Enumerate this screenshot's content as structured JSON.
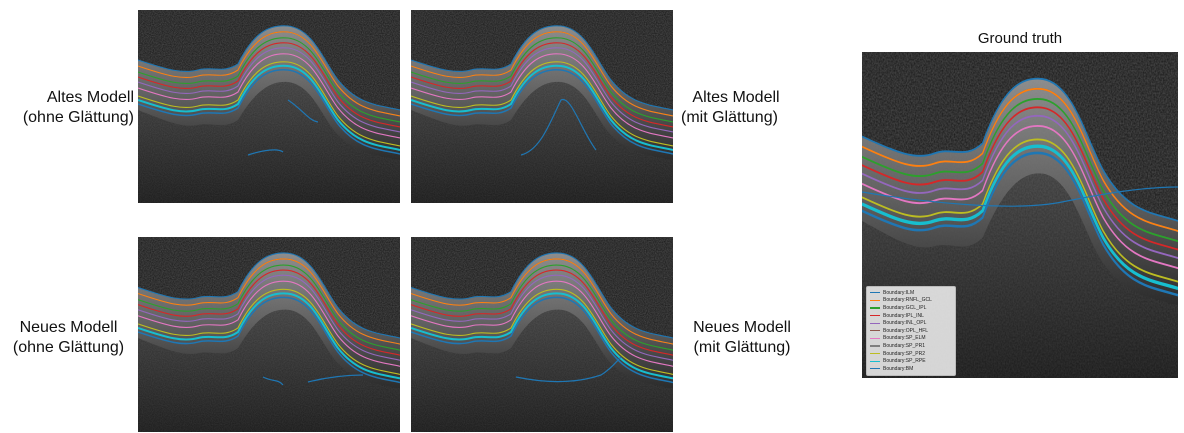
{
  "panels": [
    {
      "line1": "Altes Modell",
      "line2": "(ohne Glättung)"
    },
    {
      "line1": "Altes Modell",
      "line2": "(mit Glättung)"
    },
    {
      "line1": "Neues Modell",
      "line2": "(ohne Glättung)"
    },
    {
      "line1": "Neues Modell",
      "line2": "(mit Glättung)"
    }
  ],
  "ground_truth": {
    "title": "Ground truth",
    "legend": [
      {
        "label": "Boundary:ILM",
        "color": "#1f77b4"
      },
      {
        "label": "Boundary:RNFL_GCL",
        "color": "#ff7f0e"
      },
      {
        "label": "Boundary:GCL_IPL",
        "color": "#2ca02c"
      },
      {
        "label": "Boundary:IPL_INL",
        "color": "#d62728"
      },
      {
        "label": "Boundary:INL_OPL",
        "color": "#9467bd"
      },
      {
        "label": "Boundary:OPL_HFL",
        "color": "#8c564b"
      },
      {
        "label": "Boundary:SP_ELM",
        "color": "#e377c2"
      },
      {
        "label": "Boundary:SP_PR1",
        "color": "#7f7f7f"
      },
      {
        "label": "Boundary:SP_PR2",
        "color": "#bcbd22"
      },
      {
        "label": "Boundary:SP_RPE",
        "color": "#17becf"
      },
      {
        "label": "Boundary:BM",
        "color": "#1f77b4"
      }
    ]
  }
}
